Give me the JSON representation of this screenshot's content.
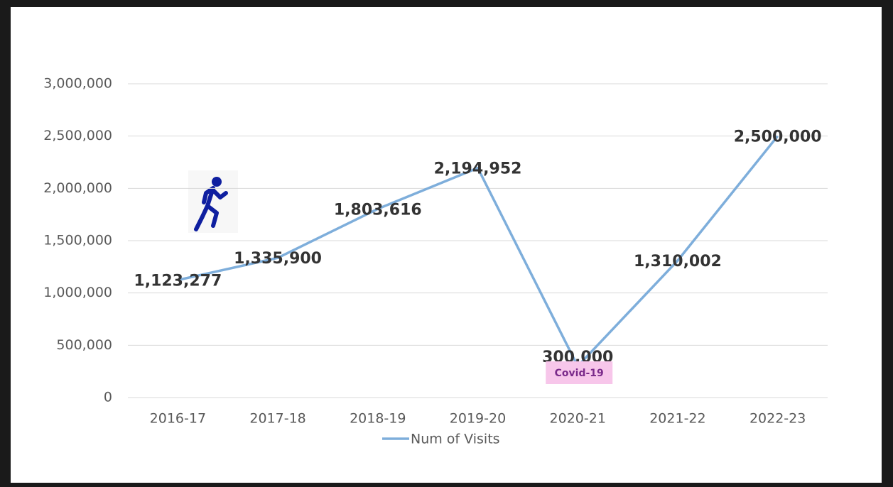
{
  "chart_data": {
    "type": "line",
    "categories": [
      "2016-17",
      "2017-18",
      "2018-19",
      "2019-20",
      "2020-21",
      "2021-22",
      "2022-23"
    ],
    "series": [
      {
        "name": "Num of Visits",
        "color": "#7eaedb",
        "values": [
          1123277,
          1335900,
          1803616,
          2194952,
          300000,
          1310002,
          2500000
        ],
        "value_labels": [
          "1,123,277",
          "1,335,900",
          "1,803,616",
          "2,194,952",
          "300,000",
          "1,310,002",
          "2,500,000"
        ]
      }
    ],
    "ylim": [
      0,
      3000000
    ],
    "yticks": [
      0,
      {
        "value": 500000,
        "label": "500,000"
      },
      {
        "value": 1000000,
        "label": "1,000,000"
      },
      {
        "value": 1500000,
        "label": "1,500,000"
      },
      {
        "value": 2000000,
        "label": "2,000,000"
      },
      {
        "value": 2500000,
        "label": "2,500,000"
      },
      {
        "value": 3000000,
        "label": "3,000,000"
      }
    ],
    "grid": true,
    "annotation": "Covid-19"
  }
}
